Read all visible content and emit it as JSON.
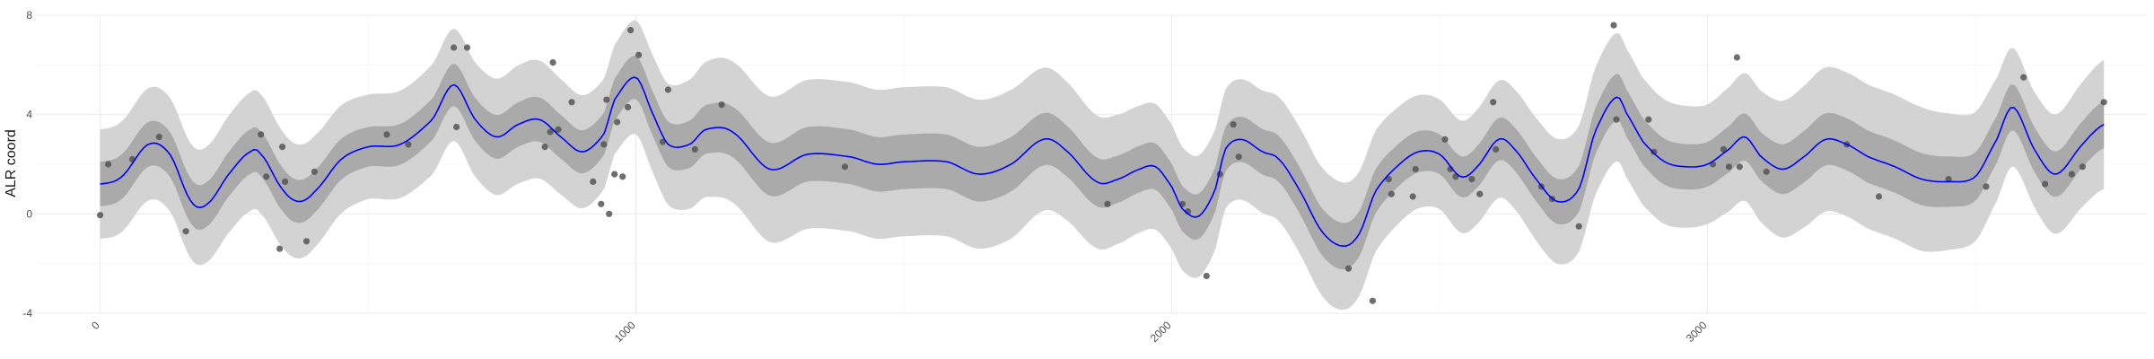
{
  "chart_data": {
    "type": "line",
    "title": "",
    "xlabel": "",
    "ylabel": "ALR coord",
    "xlim": [
      -120,
      3820
    ],
    "ylim": [
      -4,
      8
    ],
    "x_ticks": [
      0,
      1000,
      2000,
      3000
    ],
    "x_tick_labels": [
      "0",
      "1000",
      "2000",
      "3000"
    ],
    "y_ticks": [
      -4,
      0,
      4,
      8
    ],
    "y_tick_labels": [
      "-4",
      "0",
      "4",
      "8"
    ],
    "grid": true,
    "legend": "none",
    "colors": {
      "mean_line": "#0000ff",
      "inner_band": "#aaaaaa",
      "outer_band": "#d3d3d3",
      "points": "#555555"
    },
    "series": [
      {
        "role": "mean",
        "x": [
          0,
          40,
          90,
          130,
          170,
          200,
          240,
          280,
          300,
          340,
          370,
          400,
          450,
          500,
          560,
          620,
          660,
          700,
          740,
          780,
          820,
          860,
          900,
          940,
          960,
          1000,
          1030,
          1060,
          1100,
          1130,
          1180,
          1250,
          1320,
          1400,
          1450,
          1500,
          1580,
          1640,
          1700,
          1760,
          1800,
          1860,
          1900,
          1940,
          1970,
          2000,
          2020,
          2050,
          2080,
          2100,
          2130,
          2170,
          2200,
          2240,
          2280,
          2320,
          2350,
          2380,
          2420,
          2460,
          2500,
          2540,
          2570,
          2610,
          2640,
          2680,
          2720,
          2760,
          2790,
          2830,
          2850,
          2880,
          2920,
          2960,
          3000,
          3040,
          3070,
          3100,
          3140,
          3180,
          3220,
          3260,
          3300,
          3350,
          3400,
          3450,
          3500,
          3540,
          3570,
          3610,
          3650,
          3700,
          3740
        ],
        "y": [
          1.2,
          1.5,
          2.8,
          2.4,
          0.5,
          0.4,
          1.6,
          2.5,
          2.4,
          1.0,
          0.5,
          0.9,
          2.2,
          2.7,
          2.8,
          3.8,
          5.2,
          3.8,
          3.1,
          3.6,
          3.8,
          3.1,
          2.5,
          3.2,
          4.6,
          5.5,
          4.1,
          2.8,
          2.8,
          3.4,
          3.3,
          1.8,
          2.4,
          2.3,
          2.0,
          2.1,
          2.1,
          1.6,
          2.0,
          3.0,
          2.6,
          1.3,
          1.4,
          1.8,
          1.9,
          1.1,
          0.2,
          -0.1,
          0.9,
          2.6,
          3.0,
          2.5,
          2.2,
          0.9,
          -0.7,
          -1.3,
          -0.8,
          0.9,
          1.9,
          2.5,
          2.4,
          1.5,
          1.9,
          3.0,
          2.6,
          1.4,
          0.5,
          1.0,
          3.3,
          4.7,
          4.0,
          2.9,
          2.1,
          1.9,
          2.0,
          2.6,
          3.1,
          2.3,
          1.8,
          2.3,
          3.0,
          2.8,
          2.3,
          1.9,
          1.4,
          1.3,
          1.5,
          3.0,
          4.3,
          2.6,
          1.6,
          2.8,
          3.6
        ]
      },
      {
        "role": "inner_band_halfwidth",
        "x": [
          0,
          300,
          500,
          800,
          960,
          1050,
          1150,
          1300,
          1500,
          1700,
          1900,
          2100,
          2300,
          2500,
          2700,
          2850,
          3000,
          3200,
          3400,
          3600,
          3740
        ],
        "y": [
          0.9,
          0.9,
          0.8,
          0.9,
          0.85,
          0.9,
          1.0,
          1.1,
          1.1,
          1.1,
          0.95,
          0.9,
          0.95,
          0.8,
          0.9,
          0.95,
          0.9,
          1.05,
          1.05,
          0.9,
          0.95
        ]
      },
      {
        "role": "outer_band_halfwidth",
        "x": [
          0,
          300,
          500,
          800,
          960,
          1050,
          1150,
          1300,
          1500,
          1700,
          1900,
          2100,
          2300,
          2500,
          2700,
          2850,
          3000,
          3200,
          3400,
          3600,
          3740
        ],
        "y": [
          2.2,
          2.4,
          2.1,
          2.4,
          2.2,
          2.4,
          2.8,
          3.0,
          3.0,
          3.0,
          2.6,
          2.4,
          2.6,
          2.2,
          2.5,
          2.6,
          2.4,
          2.9,
          2.9,
          2.3,
          2.6
        ]
      }
    ],
    "points": [
      {
        "x": 0,
        "y": -0.05
      },
      {
        "x": 15,
        "y": 2.0
      },
      {
        "x": 60,
        "y": 2.2
      },
      {
        "x": 110,
        "y": 3.1
      },
      {
        "x": 160,
        "y": -0.7
      },
      {
        "x": 300,
        "y": 3.2
      },
      {
        "x": 310,
        "y": 1.5
      },
      {
        "x": 335,
        "y": -1.4
      },
      {
        "x": 340,
        "y": 2.7
      },
      {
        "x": 345,
        "y": 1.3
      },
      {
        "x": 385,
        "y": -1.1
      },
      {
        "x": 400,
        "y": 1.7
      },
      {
        "x": 535,
        "y": 3.2
      },
      {
        "x": 575,
        "y": 2.8
      },
      {
        "x": 660,
        "y": 6.7
      },
      {
        "x": 665,
        "y": 3.5
      },
      {
        "x": 685,
        "y": 6.7
      },
      {
        "x": 830,
        "y": 2.7
      },
      {
        "x": 840,
        "y": 3.3
      },
      {
        "x": 845,
        "y": 6.1
      },
      {
        "x": 855,
        "y": 3.4
      },
      {
        "x": 880,
        "y": 4.5
      },
      {
        "x": 920,
        "y": 1.3
      },
      {
        "x": 935,
        "y": 0.4
      },
      {
        "x": 940,
        "y": 2.8
      },
      {
        "x": 945,
        "y": 4.6
      },
      {
        "x": 950,
        "y": 0.0
      },
      {
        "x": 960,
        "y": 1.6
      },
      {
        "x": 965,
        "y": 3.7
      },
      {
        "x": 975,
        "y": 1.5
      },
      {
        "x": 985,
        "y": 4.3
      },
      {
        "x": 990,
        "y": 7.4
      },
      {
        "x": 1005,
        "y": 6.4
      },
      {
        "x": 1050,
        "y": 2.9
      },
      {
        "x": 1060,
        "y": 5.0
      },
      {
        "x": 1110,
        "y": 2.6
      },
      {
        "x": 1160,
        "y": 4.4
      },
      {
        "x": 1390,
        "y": 1.9
      },
      {
        "x": 1880,
        "y": 0.4
      },
      {
        "x": 2020,
        "y": 0.4
      },
      {
        "x": 2030,
        "y": 0.1
      },
      {
        "x": 2065,
        "y": -2.5
      },
      {
        "x": 2090,
        "y": 1.6
      },
      {
        "x": 2115,
        "y": 3.6
      },
      {
        "x": 2125,
        "y": 2.3
      },
      {
        "x": 2330,
        "y": -2.2
      },
      {
        "x": 2375,
        "y": -3.5
      },
      {
        "x": 2405,
        "y": 1.4
      },
      {
        "x": 2410,
        "y": 0.8
      },
      {
        "x": 2450,
        "y": 0.7
      },
      {
        "x": 2455,
        "y": 1.8
      },
      {
        "x": 2510,
        "y": 3.0
      },
      {
        "x": 2520,
        "y": 1.8
      },
      {
        "x": 2530,
        "y": 1.5
      },
      {
        "x": 2560,
        "y": 1.4
      },
      {
        "x": 2575,
        "y": 0.8
      },
      {
        "x": 2600,
        "y": 4.5
      },
      {
        "x": 2605,
        "y": 2.6
      },
      {
        "x": 2690,
        "y": 1.1
      },
      {
        "x": 2710,
        "y": 0.6
      },
      {
        "x": 2760,
        "y": -0.5
      },
      {
        "x": 2825,
        "y": 7.6
      },
      {
        "x": 2830,
        "y": 3.8
      },
      {
        "x": 2890,
        "y": 3.8
      },
      {
        "x": 2900,
        "y": 2.5
      },
      {
        "x": 3010,
        "y": 2.0
      },
      {
        "x": 3030,
        "y": 2.6
      },
      {
        "x": 3040,
        "y": 1.9
      },
      {
        "x": 3055,
        "y": 6.3
      },
      {
        "x": 3060,
        "y": 1.9
      },
      {
        "x": 3110,
        "y": 1.7
      },
      {
        "x": 3260,
        "y": 2.8
      },
      {
        "x": 3320,
        "y": 0.7
      },
      {
        "x": 3450,
        "y": 1.4
      },
      {
        "x": 3520,
        "y": 1.1
      },
      {
        "x": 3590,
        "y": 5.5
      },
      {
        "x": 3630,
        "y": 1.2
      },
      {
        "x": 3680,
        "y": 1.6
      },
      {
        "x": 3700,
        "y": 1.9
      },
      {
        "x": 3740,
        "y": 4.5
      }
    ]
  }
}
